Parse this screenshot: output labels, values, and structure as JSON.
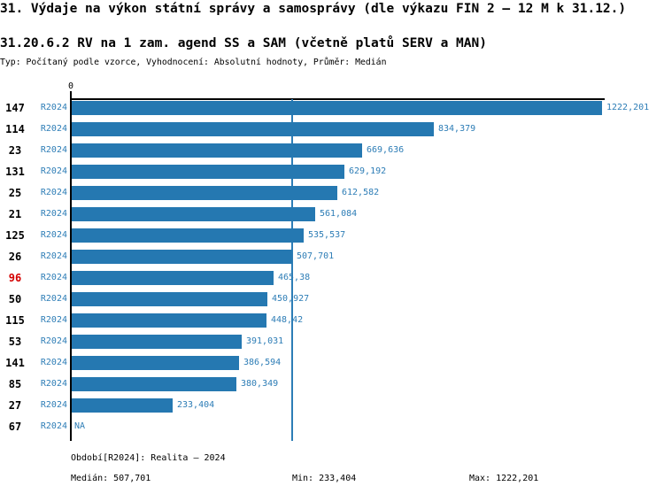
{
  "header": {
    "title": "31. Výdaje na výkon státní správy a samosprávy (dle výkazu FIN 2 – 12 M k 31.12.)",
    "subtitle": "31.20.6.2 RV na 1 zam. agend SS a SAM (včetně platů SERV a MAN)",
    "meta": "Typ: Počítaný podle vzorce, Vyhodnocení: Absolutní hodnoty, Průměr: Medián"
  },
  "chart_data": {
    "type": "bar",
    "orientation": "horizontal",
    "title": "31.20.6.2 RV na 1 zam. agend SS a SAM (včetně platů SERV a MAN)",
    "x_axis": {
      "origin_label": "0",
      "min": 0,
      "max": 1222.201,
      "gridlines": false
    },
    "series_label": "R2024",
    "xmax": 1222.201,
    "median_value": 507.701,
    "rows": [
      {
        "label": "147",
        "period": "R2024",
        "value": 1222.201,
        "value_label": "1222,201",
        "highlight": false
      },
      {
        "label": "114",
        "period": "R2024",
        "value": 834.379,
        "value_label": "834,379",
        "highlight": false
      },
      {
        "label": "23",
        "period": "R2024",
        "value": 669.636,
        "value_label": "669,636",
        "highlight": false
      },
      {
        "label": "131",
        "period": "R2024",
        "value": 629.192,
        "value_label": "629,192",
        "highlight": false
      },
      {
        "label": "25",
        "period": "R2024",
        "value": 612.582,
        "value_label": "612,582",
        "highlight": false
      },
      {
        "label": "21",
        "period": "R2024",
        "value": 561.084,
        "value_label": "561,084",
        "highlight": false
      },
      {
        "label": "125",
        "period": "R2024",
        "value": 535.537,
        "value_label": "535,537",
        "highlight": false
      },
      {
        "label": "26",
        "period": "R2024",
        "value": 507.701,
        "value_label": "507,701",
        "highlight": false
      },
      {
        "label": "96",
        "period": "R2024",
        "value": 465.38,
        "value_label": "465,38",
        "highlight": true
      },
      {
        "label": "50",
        "period": "R2024",
        "value": 450.927,
        "value_label": "450,927",
        "highlight": false
      },
      {
        "label": "115",
        "period": "R2024",
        "value": 448.42,
        "value_label": "448,42",
        "highlight": false
      },
      {
        "label": "53",
        "period": "R2024",
        "value": 391.031,
        "value_label": "391,031",
        "highlight": false
      },
      {
        "label": "141",
        "period": "R2024",
        "value": 386.594,
        "value_label": "386,594",
        "highlight": false
      },
      {
        "label": "85",
        "period": "R2024",
        "value": 380.349,
        "value_label": "380,349",
        "highlight": false
      },
      {
        "label": "27",
        "period": "R2024",
        "value": 233.404,
        "value_label": "233,404",
        "highlight": false
      },
      {
        "label": "67",
        "period": "R2024",
        "value": null,
        "value_label": "NA",
        "highlight": false
      }
    ],
    "colors": {
      "bar": "#2578b1",
      "median_line": "#2d7db6",
      "blue_text": "#2d7db6",
      "highlight_label": "#d40000",
      "axis": "#000000"
    }
  },
  "footer": {
    "period": "Období[R2024]: Realita – 2024",
    "median": "Medián: 507,701",
    "min": "Min: 233,404",
    "max": "Max: 1222,201"
  }
}
